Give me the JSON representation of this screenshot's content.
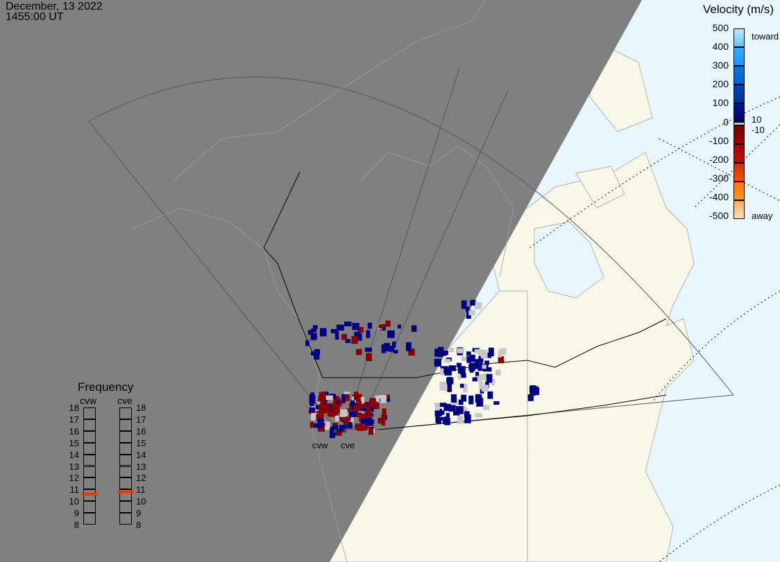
{
  "header": {
    "date": "December, 13 2022",
    "time": "1455:00 UT"
  },
  "velocity_scale": {
    "title": "Velocity (m/s)",
    "ticks": [
      "500",
      "400",
      "300",
      "200",
      "100",
      "0",
      "-100",
      "-200",
      "-300",
      "-400",
      "-500"
    ],
    "toward_label": "toward",
    "away_label": "away",
    "small_pos": "10",
    "small_neg": "-10",
    "colors": [
      "#bfe6ff",
      "#33aaff",
      "#0077dd",
      "#0044bb",
      "#001a88",
      "#000066",
      "#c8c8c8",
      "#770000",
      "#aa0000",
      "#cc3300",
      "#ff7700",
      "#ffaa55",
      "#ffd9b0"
    ]
  },
  "frequency": {
    "title": "Frequency",
    "radars": [
      {
        "name": "cvw",
        "value_mhz": 10.6
      },
      {
        "name": "cve",
        "value_mhz": 10.8
      }
    ],
    "ticks": [
      "18",
      "17",
      "16",
      "15",
      "14",
      "13",
      "12",
      "11",
      "10",
      "9",
      "8"
    ],
    "marker_color": "#ff3300"
  },
  "map": {
    "night_color": "#808080",
    "land_color": "#f8f8e8",
    "ocean_color": "#e8f6ff",
    "radar_labels": [
      "cvw",
      "cve"
    ]
  }
}
